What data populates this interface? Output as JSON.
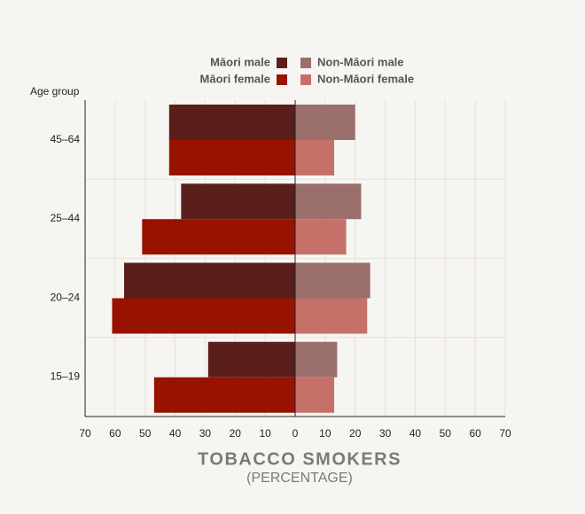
{
  "chart_data": {
    "type": "butterfly-bar",
    "title": "TOBACCO SMOKERS",
    "subtitle": "(PERCENTAGE)",
    "y_label": "Age group",
    "categories": [
      "45–64",
      "25–44",
      "20–24",
      "15–19"
    ],
    "series": [
      {
        "name": "Māori male",
        "color": "#5a1f1b",
        "side": "left",
        "values": [
          42,
          38,
          57,
          29
        ]
      },
      {
        "name": "Māori female",
        "color": "#981200",
        "side": "left",
        "values": [
          42,
          51,
          61,
          47
        ]
      },
      {
        "name": "Non-Māori male",
        "color": "#9a6f6c",
        "side": "right",
        "values": [
          20,
          22,
          25,
          14
        ]
      },
      {
        "name": "Non-Māori female",
        "color": "#c6706a",
        "side": "right",
        "values": [
          13,
          17,
          24,
          13
        ]
      }
    ],
    "xlim": [
      -70,
      70
    ],
    "xticks": [
      {
        "value": -70,
        "label": "70"
      },
      {
        "value": -60,
        "label": "60"
      },
      {
        "value": -50,
        "label": "50"
      },
      {
        "value": -40,
        "label": "40"
      },
      {
        "value": -30,
        "label": "30"
      },
      {
        "value": -20,
        "label": "20"
      },
      {
        "value": -10,
        "label": "10"
      },
      0,
      10,
      20,
      30,
      40,
      50,
      60,
      70
    ],
    "grid": true
  }
}
